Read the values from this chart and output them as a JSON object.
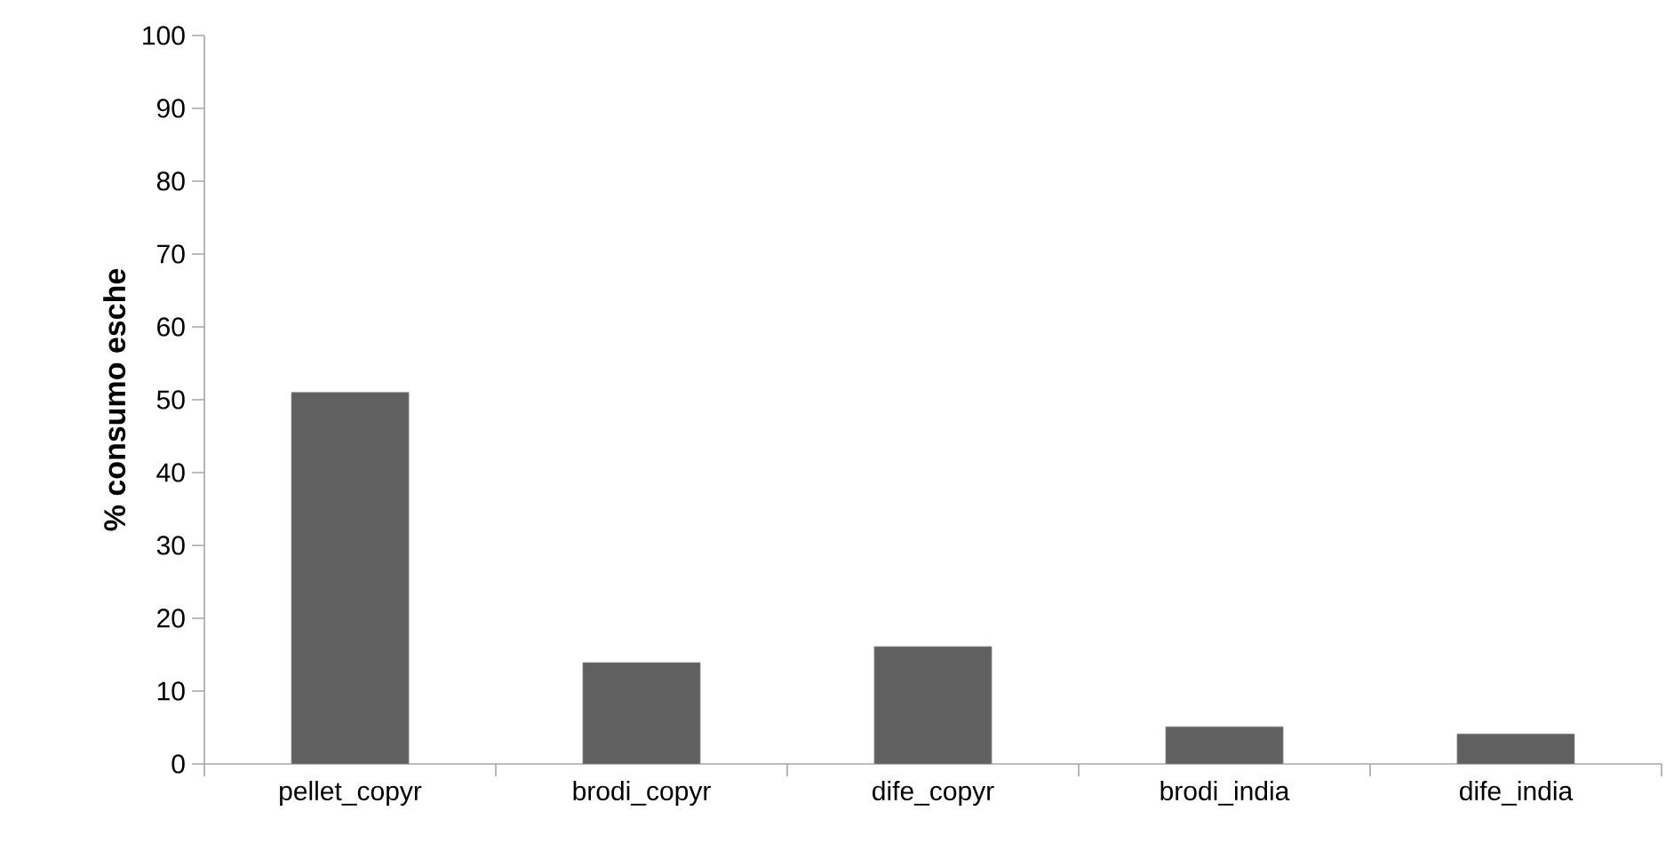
{
  "chart_data": {
    "type": "bar",
    "ylabel": "% consumo esche",
    "categories": [
      "pellet_copyr",
      "brodi_copyr",
      "dife_copyr",
      "brodi_india",
      "dife_india"
    ],
    "values": [
      51,
      13.9,
      16.1,
      5.1,
      4.1
    ],
    "color": "#606060",
    "ylim": [
      0,
      100
    ],
    "yticks": [
      0,
      10,
      20,
      30,
      40,
      50,
      60,
      70,
      80,
      90,
      100
    ],
    "grid": false
  }
}
